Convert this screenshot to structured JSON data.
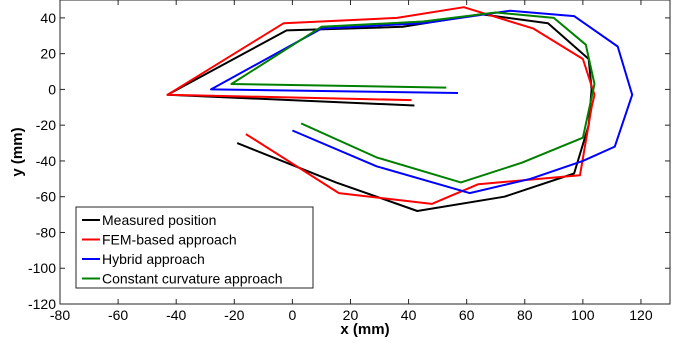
{
  "chart_data": {
    "type": "line",
    "title": "",
    "xlabel": "x (mm)",
    "ylabel": "y (mm)",
    "xlim": [
      -80,
      130
    ],
    "ylim": [
      -120,
      50
    ],
    "xticks": [
      -80,
      -60,
      -40,
      -20,
      0,
      20,
      40,
      60,
      80,
      100,
      120
    ],
    "yticks": [
      -120,
      -100,
      -80,
      -60,
      -40,
      -20,
      0,
      20,
      40
    ],
    "grid": false,
    "legend": "bottom-left",
    "series": [
      {
        "name": "Measured position",
        "color": "#000000",
        "x": [
          42,
          -43,
          -2,
          38,
          65,
          88,
          102,
          103,
          102,
          97,
          73,
          43,
          15,
          -19
        ],
        "y": [
          -9,
          -3,
          33,
          35,
          42,
          37,
          17,
          0,
          -20,
          -47,
          -60,
          -68,
          -52,
          -30
        ]
      },
      {
        "name": "FEM-based approach",
        "color": "#ff0000",
        "x": [
          41,
          -43,
          -3,
          36,
          59,
          83,
          100,
          104,
          103,
          99,
          64,
          48,
          16,
          -16
        ],
        "y": [
          -6,
          -3,
          37,
          40,
          46,
          34,
          17,
          -3,
          -10,
          -48,
          -53,
          -64,
          -58,
          -25
        ]
      },
      {
        "name": "Hybrid approach",
        "color": "#0000ff",
        "x": [
          57,
          -28,
          10,
          45,
          75,
          97,
          112,
          117,
          111,
          100,
          82,
          61,
          29,
          0
        ],
        "y": [
          -2,
          0,
          34,
          37,
          44,
          41,
          24,
          -3,
          -32,
          -40,
          -50,
          -58,
          -43,
          -23
        ]
      },
      {
        "name": "Constant curvature approach",
        "color": "#008000",
        "x": [
          53,
          -21,
          10,
          45,
          70,
          90,
          101,
          104,
          100,
          79,
          58,
          29,
          3
        ],
        "y": [
          1,
          3,
          35,
          38,
          43,
          40,
          25,
          3,
          -27,
          -41,
          -52,
          -38,
          -19
        ]
      }
    ]
  }
}
